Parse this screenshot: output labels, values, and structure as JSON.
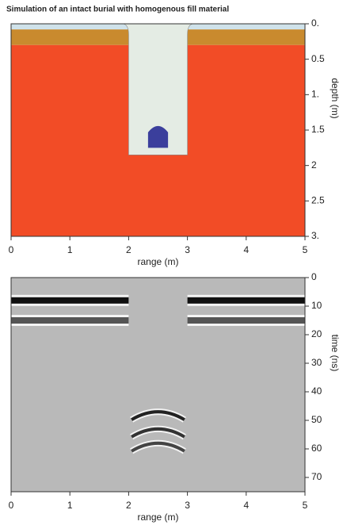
{
  "chart_data": [
    {
      "type": "section",
      "title": "Simulation of an intact burial with homogenous fill material",
      "xlabel": "range (m)",
      "ylabel": "depth (m)",
      "xlim": [
        0,
        5
      ],
      "ylim": [
        0,
        3
      ],
      "y_inverted": true,
      "xticks": [
        0,
        1,
        2,
        3,
        4,
        5
      ],
      "yticks": [
        {
          "value": 0,
          "label": "0."
        },
        0.5,
        {
          "value": 1,
          "label": "1."
        },
        1.5,
        2,
        2.5,
        {
          "value": 3,
          "label": "3."
        }
      ],
      "layers": [
        {
          "color": "#cfe2ea",
          "top": 0,
          "bottom": 0.08
        },
        {
          "color": "#c98a2e",
          "top": 0.08,
          "bottom": 0.3
        },
        {
          "color": "#f24c26",
          "top": 0.3,
          "bottom": 3
        }
      ],
      "pit": {
        "color": "#e4ece4",
        "x": [
          2,
          3
        ],
        "bottom": 1.85
      },
      "object": {
        "color": "#3b3f9c",
        "x": [
          2.33,
          2.67
        ],
        "top": 1.42,
        "bottom": 1.75
      }
    },
    {
      "type": "radargram",
      "xlabel": "range (m)",
      "ylabel": "time (ns)",
      "xlim": [
        0,
        5
      ],
      "ylim": [
        0,
        75
      ],
      "y_inverted": true,
      "xticks": [
        0,
        1,
        2,
        3,
        4,
        5
      ],
      "yticks": [
        0,
        10,
        20,
        30,
        40,
        50,
        60,
        70
      ],
      "background": "#b9b9b9",
      "reflectors": [
        {
          "x": [
            0,
            2
          ],
          "t": 8,
          "color": "#101010"
        },
        {
          "x": [
            3,
            5
          ],
          "t": 8,
          "color": "#101010"
        },
        {
          "x": [
            0,
            2
          ],
          "t": 15,
          "color": "#555555"
        },
        {
          "x": [
            3,
            5
          ],
          "t": 15,
          "color": "#555555"
        }
      ],
      "diffractions": [
        {
          "x": [
            2.05,
            2.95
          ],
          "t": 47,
          "color": "#222222"
        },
        {
          "x": [
            2.05,
            2.95
          ],
          "t": 53,
          "color": "#333333"
        },
        {
          "x": [
            2.05,
            2.95
          ],
          "t": 58,
          "color": "#444444"
        }
      ]
    }
  ]
}
